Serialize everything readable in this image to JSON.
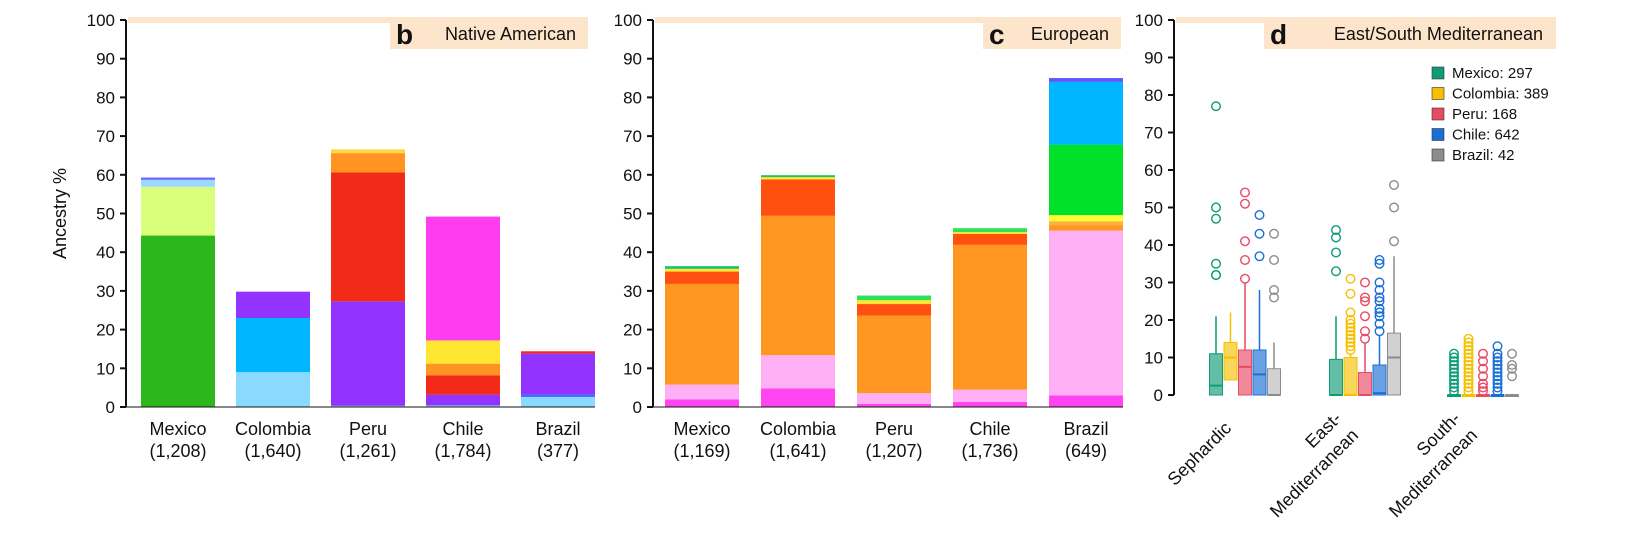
{
  "chart_data": [
    {
      "type": "bar",
      "stacked": true,
      "panel_letter": "b",
      "title": "Native American",
      "ylabel": "Ancestry %",
      "ylim": [
        0,
        100
      ],
      "yticks": [
        0,
        10,
        20,
        30,
        40,
        50,
        60,
        70,
        80,
        90,
        100
      ],
      "categories": [
        "Mexico",
        "Colombia",
        "Peru",
        "Chile",
        "Brazil"
      ],
      "category_counts": [
        "(1,208)",
        "(1,640)",
        "(1,261)",
        "(1,784)",
        "(377)"
      ],
      "segments": [
        [
          {
            "value": 44.3,
            "color": "#2cb81c"
          },
          {
            "value": 12.6,
            "color": "#d9ff7a"
          },
          {
            "value": 1.8,
            "color": "#9dd8ff"
          },
          {
            "value": 0.6,
            "color": "#6a6aff"
          }
        ],
        [
          {
            "value": 9.0,
            "color": "#8ad9ff"
          },
          {
            "value": 14.0,
            "color": "#00b6ff"
          },
          {
            "value": 6.8,
            "color": "#9233ff"
          }
        ],
        [
          {
            "value": 0.3,
            "color": "#8ad9ff"
          },
          {
            "value": 27.0,
            "color": "#9233ff"
          },
          {
            "value": 33.3,
            "color": "#f22a18"
          },
          {
            "value": 5.0,
            "color": "#ff9420"
          },
          {
            "value": 1.0,
            "color": "#ffd84a"
          }
        ],
        [
          {
            "value": 0.4,
            "color": "#8ad9ff"
          },
          {
            "value": 2.8,
            "color": "#9233ff"
          },
          {
            "value": 5.0,
            "color": "#f22a18"
          },
          {
            "value": 3.0,
            "color": "#ff9420"
          },
          {
            "value": 6.0,
            "color": "#ffe630"
          },
          {
            "value": 32.0,
            "color": "#ff3cf0"
          }
        ],
        [
          {
            "value": 2.6,
            "color": "#8ad9ff"
          },
          {
            "value": 0.6,
            "color": "#3a6aff"
          },
          {
            "value": 10.6,
            "color": "#9233ff"
          },
          {
            "value": 0.6,
            "color": "#f22a18"
          }
        ]
      ]
    },
    {
      "type": "bar",
      "stacked": true,
      "panel_letter": "c",
      "title": "European",
      "ylim": [
        0,
        100
      ],
      "yticks": [
        0,
        10,
        20,
        30,
        40,
        50,
        60,
        70,
        80,
        90,
        100
      ],
      "categories": [
        "Mexico",
        "Colombia",
        "Peru",
        "Chile",
        "Brazil"
      ],
      "category_counts": [
        "(1,169)",
        "(1,641)",
        "(1,207)",
        "(1,736)",
        "(649)"
      ],
      "segments": [
        [
          {
            "value": 2.0,
            "color": "#ff44f0"
          },
          {
            "value": 3.8,
            "color": "#ffb0f5"
          },
          {
            "value": 26.0,
            "color": "#ff9620"
          },
          {
            "value": 3.2,
            "color": "#ff5010"
          },
          {
            "value": 0.7,
            "color": "#ffe630"
          },
          {
            "value": 0.7,
            "color": "#17c56a"
          }
        ],
        [
          {
            "value": 4.8,
            "color": "#ff44f0"
          },
          {
            "value": 8.6,
            "color": "#ffb0f5"
          },
          {
            "value": 36.0,
            "color": "#ff9620"
          },
          {
            "value": 9.4,
            "color": "#ff5010"
          },
          {
            "value": 0.6,
            "color": "#ffe630"
          },
          {
            "value": 0.5,
            "color": "#17c56a"
          }
        ],
        [
          {
            "value": 0.8,
            "color": "#ff44f0"
          },
          {
            "value": 2.8,
            "color": "#ffb0f5"
          },
          {
            "value": 20.0,
            "color": "#ff9620"
          },
          {
            "value": 3.0,
            "color": "#ff5010"
          },
          {
            "value": 1.0,
            "color": "#ffe630"
          },
          {
            "value": 1.2,
            "color": "#2ee05a"
          }
        ],
        [
          {
            "value": 1.3,
            "color": "#ff44f0"
          },
          {
            "value": 3.2,
            "color": "#ffb0f5"
          },
          {
            "value": 37.4,
            "color": "#ff9620"
          },
          {
            "value": 2.8,
            "color": "#ff5010"
          },
          {
            "value": 0.5,
            "color": "#ffe630"
          },
          {
            "value": 1.0,
            "color": "#2ee05a"
          }
        ],
        [
          {
            "value": 3.0,
            "color": "#ff44f0"
          },
          {
            "value": 42.6,
            "color": "#ffb0f5"
          },
          {
            "value": 1.4,
            "color": "#ff9620"
          },
          {
            "value": 1.0,
            "color": "#ffb040"
          },
          {
            "value": 1.6,
            "color": "#ffff30"
          },
          {
            "value": 18.2,
            "color": "#00e22a"
          },
          {
            "value": 16.2,
            "color": "#00b6ff"
          },
          {
            "value": 1.0,
            "color": "#5a5aff"
          }
        ]
      ]
    },
    {
      "type": "box",
      "panel_letter": "d",
      "title": "East/South Mediterranean",
      "ylim": [
        0,
        100
      ],
      "yticks": [
        0,
        10,
        20,
        30,
        40,
        50,
        60,
        70,
        80,
        90,
        100
      ],
      "groups": [
        "Sephardic",
        "East-Mediterranean",
        "South-Mediterranean"
      ],
      "group_label_lines": [
        [
          "Sephardic"
        ],
        [
          "East-",
          "Mediterranean"
        ],
        [
          "South-",
          "Mediterranean"
        ]
      ],
      "legend": [
        {
          "label": "Mexico: 297",
          "color": "#0d9b78"
        },
        {
          "label": "Colombia: 389",
          "color": "#f6c000"
        },
        {
          "label": "Peru: 168",
          "color": "#e84a64"
        },
        {
          "label": "Chile: 642",
          "color": "#1a6fd6"
        },
        {
          "label": "Brazil: 42",
          "color": "#8c8c8c"
        }
      ],
      "boxes": [
        [
          {
            "q1": 0,
            "median": 2.5,
            "q3": 11,
            "whisker_high": 21,
            "outliers": [
              32,
              32,
              35,
              47,
              50,
              77
            ]
          },
          {
            "q1": 4,
            "median": 10,
            "q3": 14,
            "whisker_high": 22,
            "outliers": []
          },
          {
            "q1": 0,
            "median": 7.5,
            "q3": 12,
            "whisker_high": 30,
            "outliers": [
              31,
              36,
              41,
              51,
              54
            ]
          },
          {
            "q1": 0,
            "median": 5.5,
            "q3": 12,
            "whisker_high": 28,
            "outliers": [
              37,
              43,
              48
            ]
          },
          {
            "q1": 0,
            "median": 0,
            "q3": 7,
            "whisker_high": 14,
            "outliers": [
              26,
              28,
              36,
              43
            ]
          }
        ],
        [
          {
            "q1": 0,
            "median": 0,
            "q3": 9.5,
            "whisker_high": 21,
            "outliers": [
              33,
              38,
              42,
              44
            ]
          },
          {
            "q1": 0,
            "median": 0,
            "q3": 10,
            "whisker_high": 11,
            "outliers": [
              12,
              13,
              14,
              15,
              16,
              17,
              18,
              19,
              20,
              22,
              27,
              31
            ]
          },
          {
            "q1": 0,
            "median": 0,
            "q3": 6,
            "whisker_high": 14,
            "outliers": [
              15,
              17,
              21,
              25,
              26,
              30
            ]
          },
          {
            "q1": 0,
            "median": 0.5,
            "q3": 8,
            "whisker_high": 16,
            "outliers": [
              17,
              19,
              21,
              22,
              23,
              25,
              26,
              28,
              30,
              35,
              36
            ]
          },
          {
            "q1": 0,
            "median": 10,
            "q3": 16.5,
            "whisker_high": 37,
            "outliers": [
              41,
              50,
              56
            ]
          }
        ],
        [
          {
            "q1": 0,
            "median": 0,
            "q3": 0,
            "whisker_high": 0,
            "outliers": [
              1,
              2,
              3,
              4,
              5,
              6,
              7,
              8,
              9,
              10,
              11
            ]
          },
          {
            "q1": 0,
            "median": 0,
            "q3": 0,
            "whisker_high": 0,
            "outliers": [
              1,
              2,
              3,
              4,
              5,
              6,
              7,
              8,
              9,
              10,
              11,
              12,
              13,
              14,
              15
            ]
          },
          {
            "q1": 0,
            "median": 0,
            "q3": 0,
            "whisker_high": 0,
            "outliers": [
              1,
              2,
              3,
              5,
              7,
              9,
              11
            ]
          },
          {
            "q1": 0,
            "median": 0,
            "q3": 0,
            "whisker_high": 0,
            "outliers": [
              1,
              2,
              3,
              4,
              5,
              6,
              7,
              8,
              9,
              10,
              11,
              13
            ]
          },
          {
            "q1": 0,
            "median": 0,
            "q3": 0,
            "whisker_high": 0,
            "outliers": [
              5,
              7,
              8,
              11
            ]
          }
        ]
      ]
    }
  ],
  "colors": {
    "title_band": "#fde5cb",
    "axis": "#111111"
  }
}
